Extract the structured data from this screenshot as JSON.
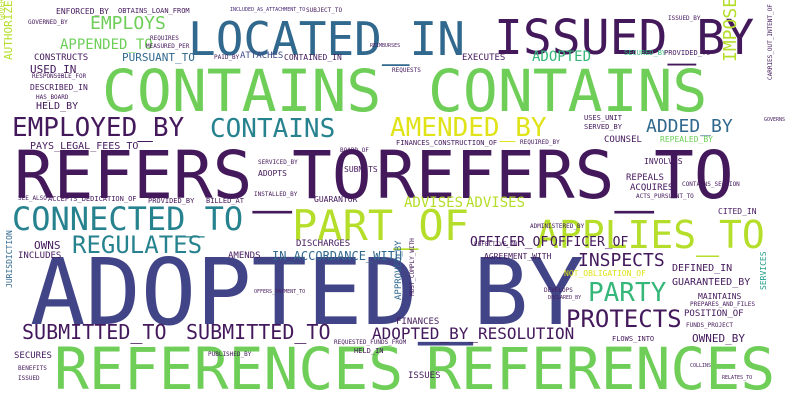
{
  "colors": {
    "dark_purple": "#44195c",
    "purple": "#482878",
    "indigo": "#3e4a89",
    "blue": "#31688e",
    "teal": "#26828e",
    "teal_green": "#1f9e89",
    "green": "#35b779",
    "light_green": "#6ece58",
    "yellow_green": "#b5de2b",
    "yellow": "#dfe318"
  },
  "words": {
    "adopted_by": "ADOPTED_BY",
    "references_1": "REFERENCES",
    "references_2": "REFERENCES",
    "refers_to_1": "REFERS_TO",
    "refers_to_2": "REFERS_TO",
    "contains_1": "CONTAINS",
    "contains_2": "CONTAINS",
    "contains_3": "CONTAINS",
    "located_in": "LOCATED_IN",
    "issued_by": "ISSUED_BY",
    "part_of": "PART_OF",
    "connected_to": "CONNECTED_TO",
    "applies_to": "APPLIES_TO",
    "amended_by": "AMENDED_BY",
    "employed_by": "EMPLOYED_BY",
    "submitted_to_1": "SUBMITTED_TO",
    "submitted_to_2": "SUBMITTED_TO",
    "regulates": "REGULATES",
    "party": "PARTY",
    "protects": "PROTECTS",
    "adopted_by_resolution": "ADOPTED_BY_RESOLUTION",
    "inspects": "INSPECTS",
    "employs": "EMPLOYS",
    "appended_to": "APPENDED_TO",
    "added_by": "ADDED_BY",
    "imposed_by": "IMPOSED_BY",
    "advises_1": "ADVISES",
    "advises_2": "ADVISES",
    "officer_of_1": "OFFICER_OF",
    "officer_of_2": "OFFICER_OF",
    "adopted": "ADOPTED",
    "issued_by_top": "ISSUED_BY",
    "pays_legal_fees_to": "PAYS_LEGAL_FEES_TO",
    "enforced_by": "ENFORCED_BY",
    "obtains_loan_from": "OBTAINS_LOAN_FROM",
    "governed_by": "GOVERNED_BY",
    "constructs": "CONSTRUCTS",
    "pursuant_to": "PURSUANT_TO",
    "used_in": "USED_IN",
    "described_in": "DESCRIBED_IN",
    "held_by": "HELD_BY",
    "has_board": "HAS_BOARD",
    "responsible_for": "RESPONSIBLE_FOR",
    "authorized_by": "AUTHORIZED_BY",
    "attaches": "ATTACHES",
    "paid_by": "PAID_BY",
    "contained_in": "CONTAINED_IN",
    "executes": "EXECUTES",
    "requests": "REQUESTS",
    "secured_by": "SECURED_BY",
    "provided_to": "PROVIDED_TO",
    "amends": "AMENDS",
    "in_accordance_with": "IN_ACCORDANCE_WITH",
    "discharges": "DISCHARGES",
    "agreement_with": "AGREEMENT_WITH",
    "defined_in": "DEFINED_IN",
    "guaranteed_by": "GUARANTEED_BY",
    "maintains": "MAINTAINS",
    "position_of": "POSITION_OF",
    "owned_by": "OWNED_BY",
    "funds_project": "FUNDS_PROJECT",
    "flows_into": "FLOWS_INTO",
    "issues": "ISSUES",
    "held_in": "HELD_IN",
    "secures": "SECURES",
    "includes": "INCLUDES",
    "owns": "OWNS",
    "see_also": "SEE_ALSO",
    "accepts_dedication_of": "ACCEPTS_DEDICATION_OF",
    "provided_by": "PROVIDED_BY",
    "billed_at": "BILLED_AT",
    "guarantor": "GUARANTOR",
    "administered_by": "ADMINISTERED_BY",
    "acts_pursuant_to": "ACTS_PURSUANT_TO",
    "cited_in": "CITED_IN",
    "repeals": "REPEALS",
    "acquires": "ACQUIRES",
    "contains_section": "CONTAINS_SECTION",
    "involves": "INVOLVES",
    "counsel": "COUNSEL",
    "repealed_by": "REPEALED_BY",
    "uses_unit": "USES_UNIT",
    "served_by": "SERVED_BY",
    "required_by": "REQUIRED_BY",
    "finances_construction_of": "FINANCES_CONSTRUCTION_OF",
    "board_of": "BOARD_OF",
    "submits": "SUBMITS",
    "adopts": "ADOPTS",
    "serviced_by": "SERVICED_BY",
    "installed_by": "INSTALLED_BY",
    "finances": "FINANCES",
    "develops": "DEVELOPS",
    "prepares_and_files": "PREPARES_AND_FILES",
    "not_obligation_of": "NOT_OBLIGATION_OF",
    "governs": "GOVERNS",
    "effective_on": "EFFECTIVE_ON",
    "requires": "REQUIRES",
    "measured_per": "MEASURED_PER",
    "subject_to": "SUBJECT_TO",
    "reimburses": "REIMBURSES",
    "included_as_attachment_to": "INCLUDED_AS_ATTACHMENT_TO",
    "jurisdiction": "JURISDICTION",
    "approved_by": "APPROVED_BY",
    "services": "SERVICES",
    "benefits": "BENEFITS",
    "issued": "ISSUED",
    "defines": "DEFINES",
    "published_by": "PUBLISHED_BY",
    "declared_by": "DECLARED_BY",
    "requested_funds_from": "REQUESTED_FUNDS_FROM",
    "must_comply_with": "MUST_COMPLY_WITH",
    "offers_payment_to": "OFFERS_PAYMENT_TO",
    "carries_out_intent_of": "CARRIES_OUT_INTENT_OF",
    "relates_to": "RELATES_TO",
    "collins": "COLLINS"
  }
}
